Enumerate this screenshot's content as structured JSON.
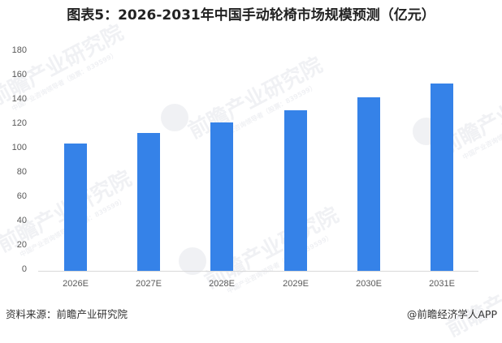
{
  "title": "图表5：2026-2031年中国手动轮椅市场规模预测（亿元）",
  "chart_data": {
    "type": "bar",
    "title": "图表5：2026-2031年中国手动轮椅市场规模预测（亿元）",
    "xlabel": "",
    "ylabel": "",
    "categories": [
      "2026E",
      "2027E",
      "2028E",
      "2029E",
      "2030E",
      "2031E"
    ],
    "values": [
      104.3,
      112.9,
      121.5,
      131.7,
      142.1,
      153.4
    ],
    "series": [
      {
        "name": "手动轮椅市场规模（亿元）",
        "values": [
          104.3,
          112.9,
          121.5,
          131.7,
          142.1,
          153.4
        ]
      }
    ],
    "ylim": [
      0,
      180
    ],
    "yticks": [
      0,
      20,
      40,
      60,
      80,
      100,
      120,
      140,
      160,
      180
    ],
    "grid": false,
    "legend": "none",
    "bar_color": "#3582E8"
  },
  "axis": {
    "y_ticks": [
      "0",
      "20",
      "40",
      "60",
      "80",
      "100",
      "120",
      "140",
      "160",
      "180"
    ],
    "x_labels": [
      "2026E",
      "2027E",
      "2028E",
      "2029E",
      "2030E",
      "2031E"
    ]
  },
  "footer": {
    "source": "资料来源：前瞻产业研究院",
    "credit": "@前瞻经济学人APP"
  },
  "watermark": {
    "text": "前瞻产业研究院",
    "subtext": "中国产业咨询领导者（股票：839599）"
  },
  "colors": {
    "bar": "#3582E8",
    "axis": "#D9D9D9",
    "text": "#595959"
  }
}
